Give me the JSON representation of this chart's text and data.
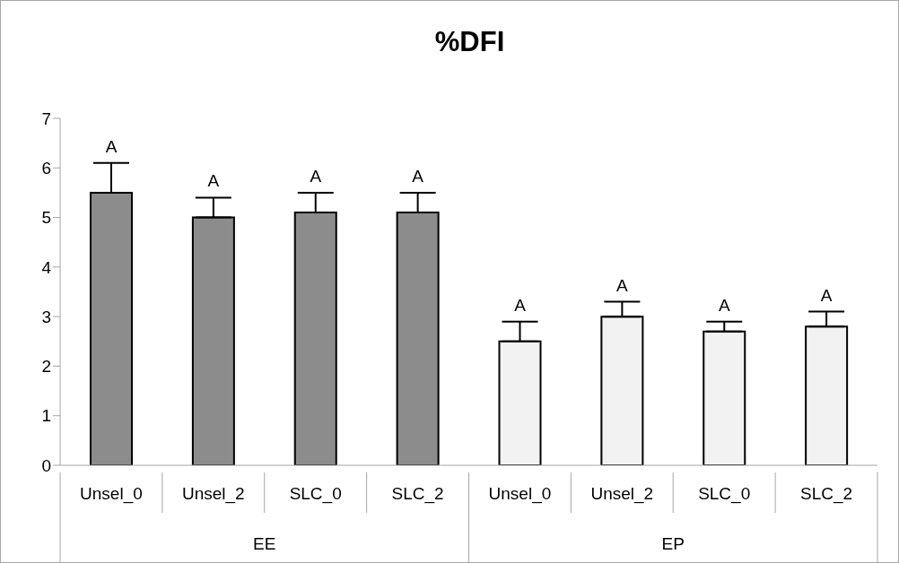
{
  "chart_data": {
    "type": "bar",
    "title": "%DFI",
    "categories": [
      "Unsel_0",
      "Unsel_2",
      "SLC_0",
      "SLC_2",
      "Unsel_0",
      "Unsel_2",
      "SLC_0",
      "SLC_2"
    ],
    "values": [
      5.5,
      5.0,
      5.1,
      5.1,
      2.5,
      3.0,
      2.7,
      2.8
    ],
    "errors": [
      [
        5.5,
        6.1
      ],
      [
        5.0,
        5.4
      ],
      [
        5.1,
        5.5
      ],
      [
        5.1,
        5.5
      ],
      [
        2.5,
        2.9
      ],
      [
        3.0,
        3.3
      ],
      [
        2.7,
        2.9
      ],
      [
        2.8,
        3.1
      ]
    ],
    "value_labels": [
      "A",
      "A",
      "A",
      "A",
      "A",
      "A",
      "A",
      "A"
    ],
    "colors": [
      "#8c8c8c",
      "#8c8c8c",
      "#8c8c8c",
      "#8c8c8c",
      "#f2f2f2",
      "#f2f2f2",
      "#f2f2f2",
      "#f2f2f2"
    ],
    "annotations": [
      "EE",
      "EP"
    ],
    "ylim": [
      0,
      7
    ],
    "yticks": [
      0,
      1,
      2,
      3,
      4,
      5,
      6,
      7
    ],
    "grid": false,
    "legend": false
  }
}
